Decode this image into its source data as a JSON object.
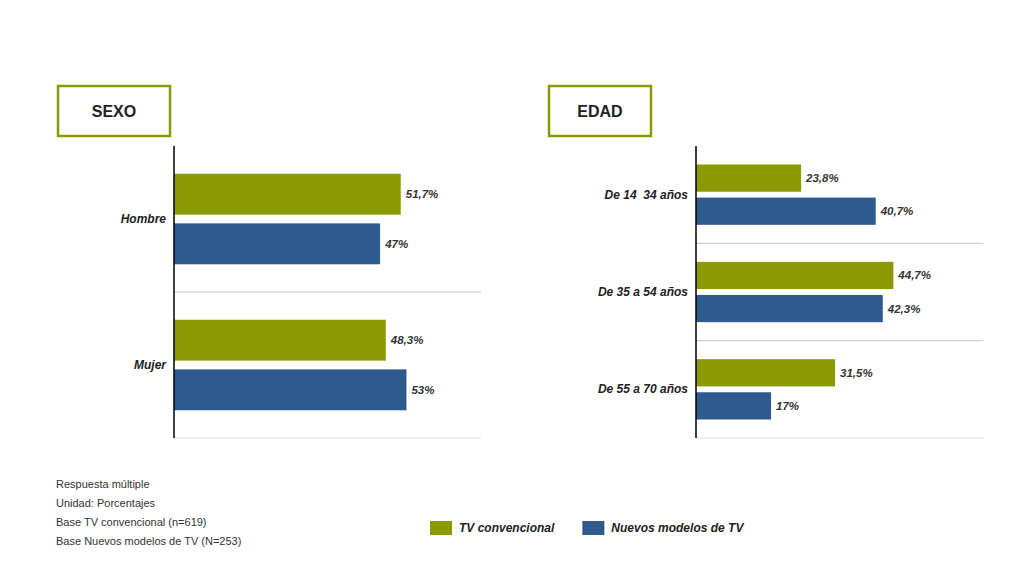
{
  "chart_data": [
    {
      "type": "bar",
      "orientation": "horizontal",
      "title": "SEXO",
      "categories": [
        "Hombre",
        "Mujer"
      ],
      "series": [
        {
          "name": "TV convencional",
          "color": "#8B9A00",
          "values": [
            51.7,
            48.3
          ],
          "value_labels": [
            "51,7%",
            "48,3%"
          ]
        },
        {
          "name": "Nuevos modelos de TV",
          "color": "#2E5A8E",
          "values": [
            47.0,
            53.0
          ],
          "value_labels": [
            "47%",
            "53%"
          ]
        }
      ],
      "xlim": [
        0,
        70
      ],
      "data_labels": true,
      "tick_labels": "y",
      "grid": false,
      "legend": "bottom",
      "annotations": [
        "Respuesta múltiple",
        "Unidad: Porcentajes",
        "Base TV convencional (n=619)",
        "Base Nuevos modelos de TV (N=253)"
      ]
    },
    {
      "type": "bar",
      "orientation": "horizontal",
      "title": "EDAD",
      "categories": [
        "De 14  34 años",
        "De 35 a 54 años",
        "De 55 a 70 años"
      ],
      "series": [
        {
          "color": "#8B9A00",
          "values": [
            23.8,
            44.7,
            31.5
          ],
          "value_labels": [
            "23,8%",
            "44,7%",
            "31,5%"
          ]
        },
        {
          "color": "#2E5A8E",
          "values": [
            40.7,
            42.3,
            17.0
          ],
          "value_labels": [
            "40,7%",
            "42,3%",
            "17%"
          ]
        }
      ],
      "xlim": [
        0,
        65
      ],
      "data_labels": true,
      "tick_labels": "y",
      "grid": false
    }
  ]
}
